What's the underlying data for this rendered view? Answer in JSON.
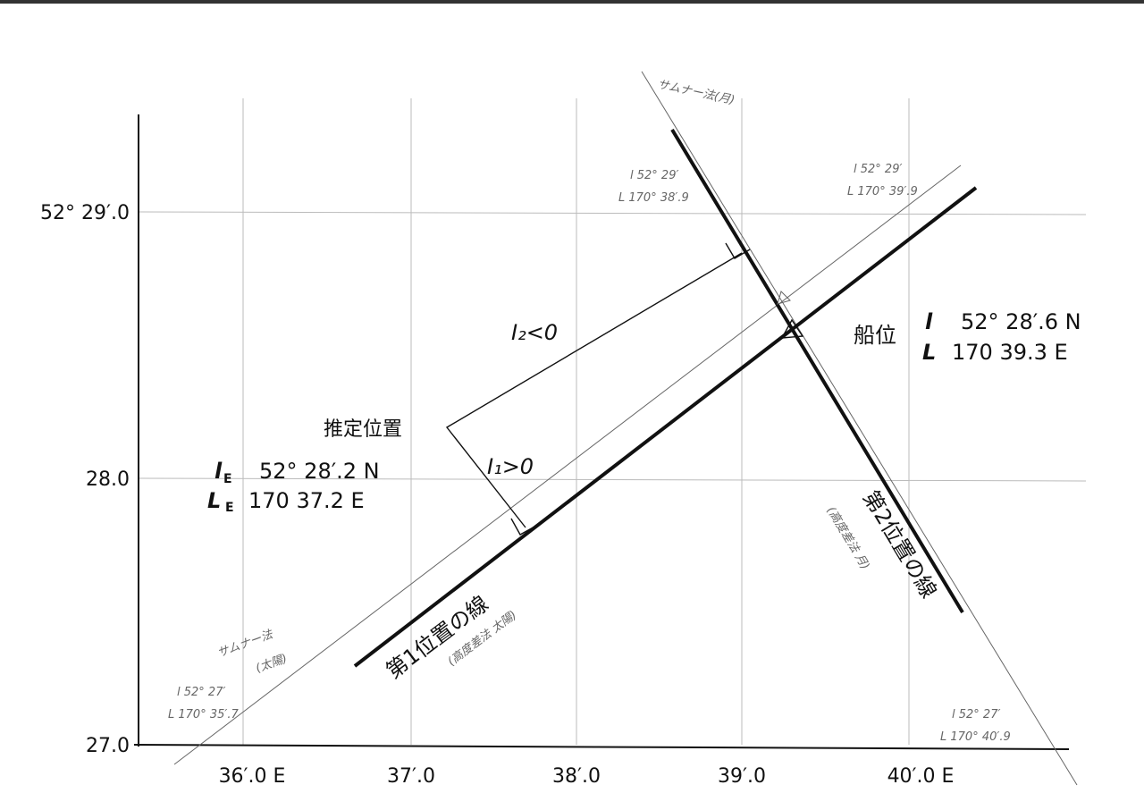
{
  "y_axis_labels": [
    "52° 29′.0",
    "28.0",
    "27.0"
  ],
  "x_axis_labels": [
    "36′.0 E",
    "37′.0",
    "38′.0",
    "39′.0",
    "40′.0 E"
  ],
  "sumner_moon": "サムナー法(月)",
  "sumner_sun": [
    "サムナー法",
    "(太陽)"
  ],
  "point_upper_left": [
    "l 52° 29′",
    "L 170° 38′.9"
  ],
  "point_upper_right": [
    "l 52° 29′",
    "L 170° 39′.9"
  ],
  "point_lower_left": [
    "l 52° 27′",
    "L 170° 35′.7"
  ],
  "point_lower_right": [
    "l 52° 27′",
    "L 170° 40′.9"
  ],
  "ship_position": {
    "label": "船位",
    "lat_symbol": "l",
    "lat": "52° 28′.6 N",
    "lon_symbol": "L",
    "lon": "170 39.3 E"
  },
  "estimated_position": {
    "label": "推定位置",
    "lat_symbol": "l",
    "lat_sub": "E",
    "lat": "52° 28′.2 N",
    "lon_symbol": "L",
    "lon_sub": "E",
    "lon": "170 37.2 E"
  },
  "intercept_2": "I₂<0",
  "intercept_1": "I₁>0",
  "lop_1": {
    "label": "第1位置の線",
    "method": "(高度差法 太陽)"
  },
  "lop_2": {
    "label": "第2位置の線",
    "method": "(高度差法 月)"
  }
}
